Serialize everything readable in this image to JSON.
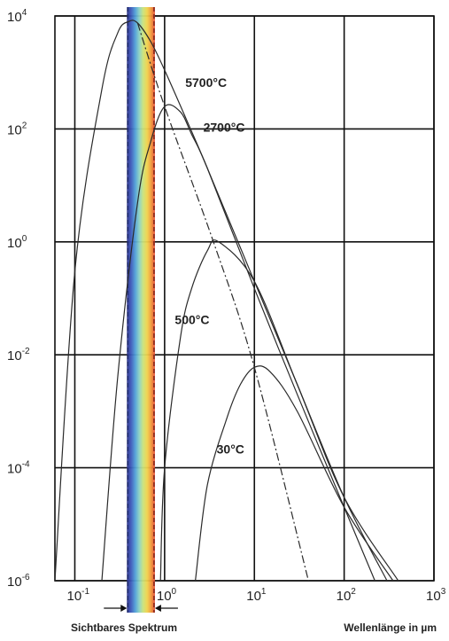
{
  "chart_data": {
    "type": "line",
    "x_scale": "log",
    "y_scale": "log",
    "xlim": [
      0.06,
      1000
    ],
    "ylim": [
      1e-06,
      10000
    ],
    "grid": true,
    "x_ticks": [
      {
        "base": "10",
        "exp": "-1",
        "value": 0.1
      },
      {
        "base": "10",
        "exp": "0",
        "value": 1
      },
      {
        "base": "10",
        "exp": "1",
        "value": 10
      },
      {
        "base": "10",
        "exp": "2",
        "value": 100
      },
      {
        "base": "10",
        "exp": "3",
        "value": 1000
      }
    ],
    "y_ticks": [
      {
        "base": "10",
        "exp": "4",
        "value": 10000
      },
      {
        "base": "10",
        "exp": "2",
        "value": 100
      },
      {
        "base": "10",
        "exp": "0",
        "value": 1
      },
      {
        "base": "10",
        "exp": "-2",
        "value": 0.01
      },
      {
        "base": "10",
        "exp": "-4",
        "value": 0.0001
      },
      {
        "base": "10",
        "exp": "-6",
        "value": 1e-06
      }
    ],
    "xlabel": "Wellenlänge in µm",
    "visible_band": {
      "label": "Sichtbares Spektrum",
      "x_from": 0.38,
      "x_to": 0.78
    },
    "series": [
      {
        "name": "5700°C",
        "style": "solid",
        "x": [
          0.06,
          0.1,
          0.2,
          0.3,
          0.4,
          0.5,
          0.7,
          1,
          2,
          3,
          10,
          30,
          100,
          300
        ],
        "y": [
          1e-06,
          0.3,
          500,
          5000,
          8000,
          7500,
          3500,
          1100,
          90,
          20,
          0.2,
          0.003,
          3e-05,
          1e-06
        ]
      },
      {
        "name": "2700°C",
        "style": "solid",
        "x": [
          0.2,
          0.3,
          0.5,
          0.7,
          1,
          1.5,
          2,
          3,
          10,
          30,
          100,
          220
        ],
        "y": [
          1e-06,
          0.004,
          5,
          60,
          250,
          200,
          80,
          20,
          0.15,
          0.002,
          2e-05,
          1e-06
        ]
      },
      {
        "name": "500°C",
        "style": "solid",
        "x": [
          0.9,
          1,
          1.5,
          2,
          3,
          4,
          10,
          30,
          100,
          400
        ],
        "y": [
          1e-06,
          0.0001,
          0.02,
          0.15,
          0.7,
          1,
          0.2,
          0.003,
          3e-05,
          1e-06
        ]
      },
      {
        "name": "30°C",
        "style": "solid",
        "x": [
          2.2,
          3,
          5,
          7,
          10,
          15,
          30,
          100,
          350
        ],
        "y": [
          1e-06,
          5e-05,
          0.0008,
          0.003,
          0.006,
          0.005,
          0.001,
          2e-05,
          1e-06
        ]
      },
      {
        "name": "",
        "style": "dashdot",
        "x": [
          0.5,
          1,
          3.5,
          10,
          40
        ],
        "y": [
          7500,
          250,
          1,
          0.006,
          1e-06
        ]
      }
    ],
    "annotations": [
      {
        "text": "5700°C",
        "x": 1.7,
        "y": 550
      },
      {
        "text": "2700°C",
        "x": 2.7,
        "y": 90
      },
      {
        "text": "500°C",
        "x": 1.3,
        "y": 0.035
      },
      {
        "text": "30°C",
        "x": 3.8,
        "y": 0.00018
      }
    ]
  }
}
